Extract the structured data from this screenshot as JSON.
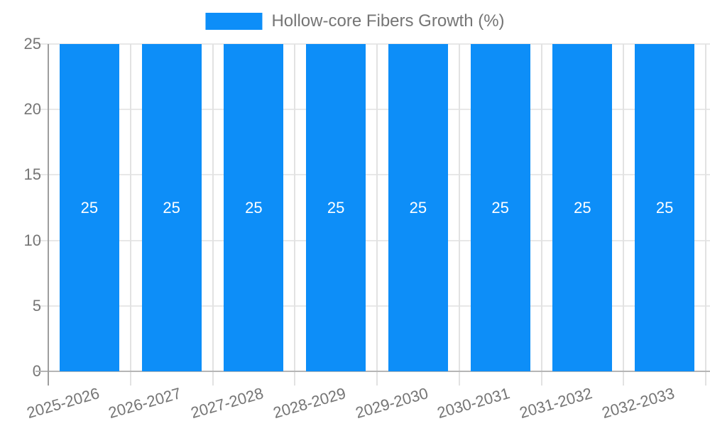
{
  "chart_data": {
    "type": "bar",
    "categories": [
      "2025-2026",
      "2026-2027",
      "2027-2028",
      "2028-2029",
      "2029-2030",
      "2030-2031",
      "2031-2032",
      "2032-2033"
    ],
    "series": [
      {
        "name": "Hollow-core Fibers Growth (%)",
        "values": [
          25,
          25,
          25,
          25,
          25,
          25,
          25,
          25
        ]
      }
    ],
    "value_labels": [
      "25",
      "25",
      "25",
      "25",
      "25",
      "25",
      "25",
      "25"
    ],
    "ylim": [
      0,
      25
    ],
    "yticks": [
      0,
      5,
      10,
      15,
      20,
      25
    ],
    "ytick_labels": [
      "0",
      "5",
      "10",
      "15",
      "20",
      "25"
    ],
    "xlabel": "",
    "ylabel": "",
    "legend_position": "top",
    "grid": true,
    "show_value_labels": true
  },
  "colors": {
    "bar": "#0d8ef8",
    "legend_swatch": "#0d8ef8",
    "axis_text": "#757575",
    "legend_text": "#757575",
    "bar_label_text": "#ffffff",
    "gridline_h": "#e8e8e8",
    "gridline_v": "#e2e2e2",
    "axis_line": "#9e9e9e",
    "baseline": "#b5b5b5",
    "background": "#ffffff"
  }
}
